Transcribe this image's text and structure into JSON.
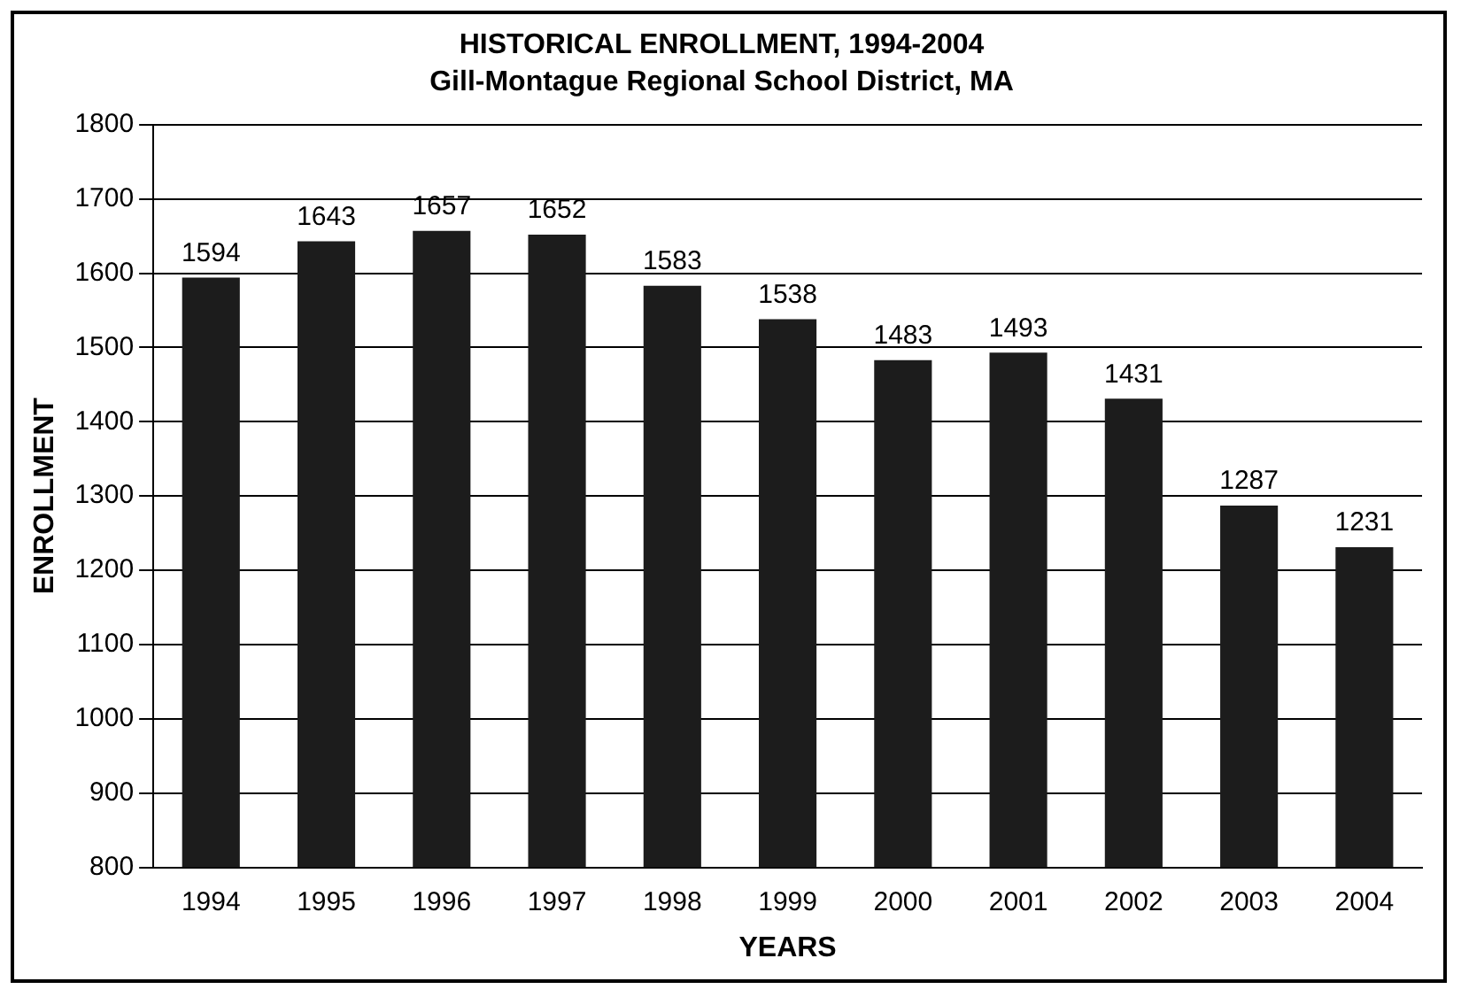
{
  "chart_data": {
    "type": "bar",
    "title": "HISTORICAL ENROLLMENT, 1994-2004",
    "subtitle": "Gill-Montague Regional School District, MA",
    "xlabel": "YEARS",
    "ylabel": "ENROLLMENT",
    "categories": [
      "1994",
      "1995",
      "1996",
      "1997",
      "1998",
      "1999",
      "2000",
      "2001",
      "2002",
      "2003",
      "2004"
    ],
    "values": [
      1594,
      1643,
      1657,
      1652,
      1583,
      1538,
      1483,
      1493,
      1431,
      1287,
      1231
    ],
    "color": "#1c1c1c",
    "ylim": [
      800,
      1800
    ],
    "yticks": [
      800,
      900,
      1000,
      1100,
      1200,
      1300,
      1400,
      1500,
      1600,
      1700,
      1800
    ],
    "grid": "y",
    "legend": false,
    "data_labels": true
  }
}
